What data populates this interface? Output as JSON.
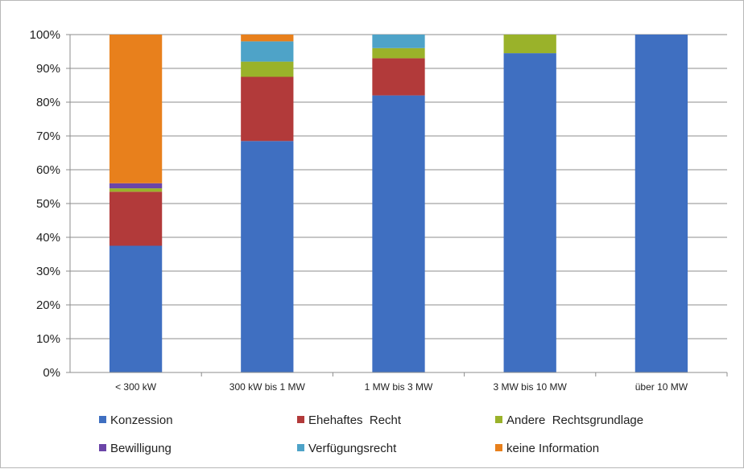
{
  "chart_data": {
    "type": "bar",
    "stacked": true,
    "categories": [
      "< 300 kW",
      "300 kW bis 1 MW",
      "1 MW bis 3 MW",
      "3 MW bis 10 MW",
      "über 10 MW"
    ],
    "series": [
      {
        "name": "Konzession",
        "color": "#3f6fc1",
        "values": [
          37.5,
          68.5,
          82,
          94.5,
          100
        ]
      },
      {
        "name": "Ehehaftes  Recht",
        "color": "#b23a3a",
        "values": [
          16,
          19,
          11,
          0,
          0
        ]
      },
      {
        "name": "Andere  Rechtsgrundlage",
        "color": "#9ab22a",
        "values": [
          1,
          4.5,
          3,
          5.5,
          0
        ]
      },
      {
        "name": "Bewilligung",
        "color": "#6b45a8",
        "values": [
          1.5,
          0,
          0,
          0,
          0
        ]
      },
      {
        "name": "Verfügungsrecht",
        "color": "#4ea3c8",
        "values": [
          0,
          6,
          4,
          0,
          0
        ]
      },
      {
        "name": "keine Information",
        "color": "#e8801c",
        "values": [
          44,
          2,
          0,
          0,
          0
        ]
      }
    ],
    "y_ticks": [
      "0%",
      "10%",
      "20%",
      "30%",
      "40%",
      "50%",
      "60%",
      "70%",
      "80%",
      "90%",
      "100%"
    ],
    "ylim": [
      0,
      100
    ],
    "grid": true,
    "legend_position": "bottom",
    "title": "",
    "xlabel": "",
    "ylabel": ""
  }
}
